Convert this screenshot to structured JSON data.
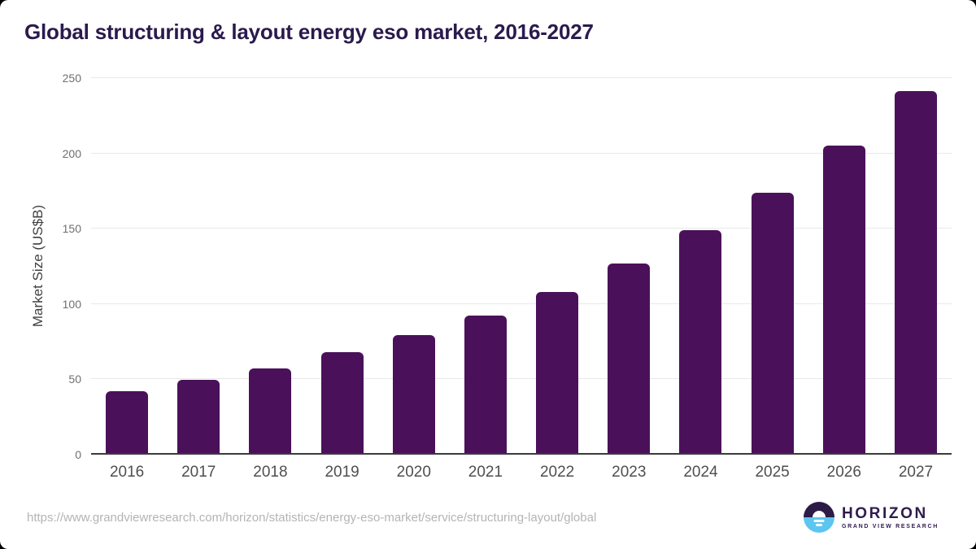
{
  "page": {
    "background_color": "#000000",
    "card_color": "#ffffff"
  },
  "chart_data": {
    "type": "bar",
    "title": "Global structuring & layout energy eso market, 2016-2027",
    "categories": [
      "2016",
      "2017",
      "2018",
      "2019",
      "2020",
      "2021",
      "2022",
      "2023",
      "2024",
      "2025",
      "2026",
      "2027"
    ],
    "values": [
      42,
      49.5,
      57.5,
      68,
      79.5,
      92.5,
      108,
      127,
      149,
      174,
      205,
      241.5
    ],
    "xlabel": "",
    "ylabel": "Market Size (US$B)",
    "ylim": [
      0,
      250
    ],
    "yticks": [
      0,
      50,
      100,
      150,
      200,
      250
    ],
    "grid": "horizontal",
    "legend": "none",
    "bar_color": "#4a115a"
  },
  "colors": {
    "title_text": "#2b1a4d",
    "y_tick_text": "#6f6f6f",
    "x_tick_text": "#4f4f4f",
    "gridline": "#e9e9e9",
    "axis_line": "#3b3b3b",
    "url_text": "#b4b4b4"
  },
  "footer": {
    "source_url": "https://www.grandviewresearch.com/horizon/statistics/energy-eso-market/service/structuring-layout/global",
    "logo": {
      "brand": "HORIZON",
      "tagline": "GRAND VIEW RESEARCH",
      "icon": "horizon-sun-icon",
      "icon_dark_color": "#2d1a47",
      "icon_light_color": "#5cc6f1"
    }
  }
}
